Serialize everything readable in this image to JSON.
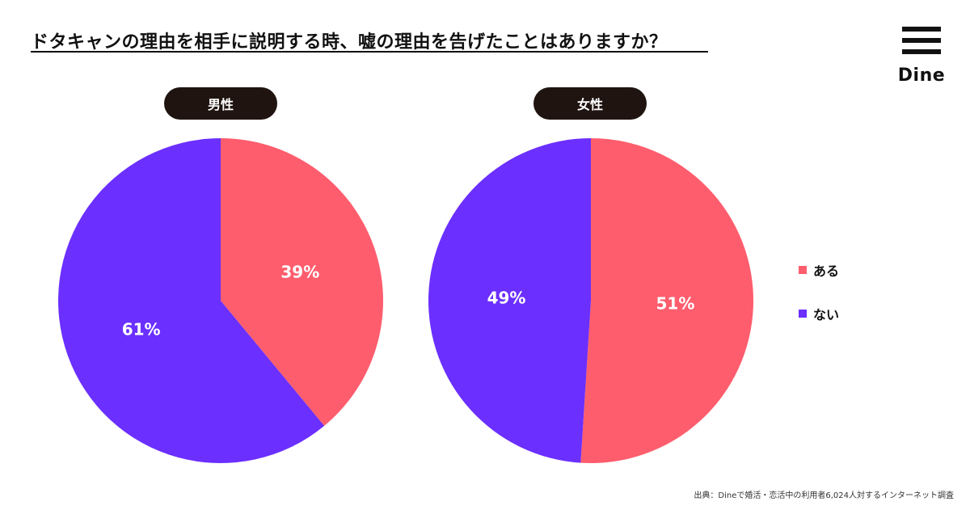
{
  "title": "ドタキャンの理由を相手に説明する時、嘘の理由を告げたことはありますか？",
  "logo": {
    "text": "Dine"
  },
  "legend": [
    {
      "label": "ある",
      "color": "#fe5d6d"
    },
    {
      "label": "ない",
      "color": "#6b2fff"
    }
  ],
  "chart_data": [
    {
      "type": "pie",
      "title": "男性",
      "slices": [
        {
          "label": "ある",
          "value": 39,
          "display": "39%",
          "color": "#fe5d6d"
        },
        {
          "label": "ない",
          "value": 61,
          "display": "61%",
          "color": "#6b2fff"
        }
      ]
    },
    {
      "type": "pie",
      "title": "女性",
      "slices": [
        {
          "label": "ある",
          "value": 51,
          "display": "51%",
          "color": "#fe5d6d"
        },
        {
          "label": "ない",
          "value": 49,
          "display": "49%",
          "color": "#6b2fff"
        }
      ]
    }
  ],
  "source": "出典：Dineで婚活・恋活中の利用者6,024人対するインターネット調査"
}
